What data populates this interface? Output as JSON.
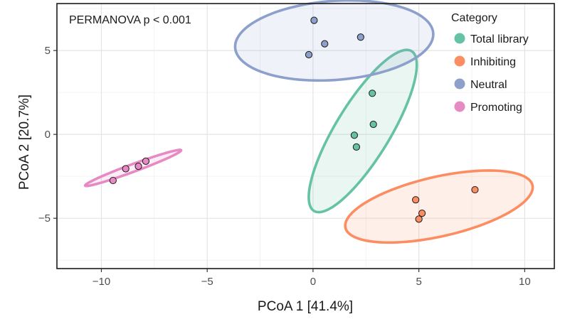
{
  "chart_data": {
    "type": "scatter",
    "xlabel": "PCoA 1 [41.4%]",
    "ylabel": "PCoA 2 [20.7%]",
    "xlim": [
      -12.1,
      11.4
    ],
    "ylim": [
      -8,
      7.8
    ],
    "xticks": [
      -10,
      -5,
      0,
      5,
      10
    ],
    "xtick_labels": [
      "−10",
      "−5",
      "0",
      "5",
      "10"
    ],
    "yticks": [
      -5,
      0,
      5
    ],
    "ytick_labels": [
      "−5",
      "0",
      "5"
    ],
    "grid": true,
    "legend": {
      "title": "Category",
      "position": "top-right"
    },
    "annotation": "PERMANOVA p < 0.001",
    "series": [
      {
        "name": "Total library",
        "color": "#66c2a5",
        "points": [
          [
            2.8,
            2.45
          ],
          [
            2.85,
            0.6
          ],
          [
            1.95,
            -0.05
          ],
          [
            2.05,
            -0.75
          ]
        ],
        "ellipse": {
          "center": [
            2.35,
            0.2
          ],
          "semi_major": 5.3,
          "semi_minor": 1.35,
          "angle_deg": 65
        }
      },
      {
        "name": "Inhibiting",
        "color": "#fc8d62",
        "points": [
          [
            4.85,
            -3.9
          ],
          [
            5.15,
            -4.7
          ],
          [
            5.0,
            -5.05
          ],
          [
            7.65,
            -3.3
          ]
        ],
        "ellipse": {
          "center": [
            5.95,
            -4.3
          ],
          "semi_major": 4.6,
          "semi_minor": 1.75,
          "angle_deg": 17
        }
      },
      {
        "name": "Neutral",
        "color": "#8da0cb",
        "points": [
          [
            0.05,
            6.8
          ],
          [
            2.25,
            5.8
          ],
          [
            0.55,
            5.4
          ],
          [
            -0.2,
            4.75
          ]
        ],
        "ellipse": {
          "center": [
            1.0,
            5.6
          ],
          "semi_major": 4.7,
          "semi_minor": 2.35,
          "angle_deg": 6
        }
      },
      {
        "name": "Promoting",
        "color": "#e78ac3",
        "points": [
          [
            -9.45,
            -2.75
          ],
          [
            -8.85,
            -2.05
          ],
          [
            -8.25,
            -1.9
          ],
          [
            -7.9,
            -1.6
          ]
        ],
        "ellipse": {
          "center": [
            -8.5,
            -2.0
          ],
          "semi_major": 2.5,
          "semi_minor": 0.22,
          "angle_deg": 25
        }
      }
    ]
  }
}
